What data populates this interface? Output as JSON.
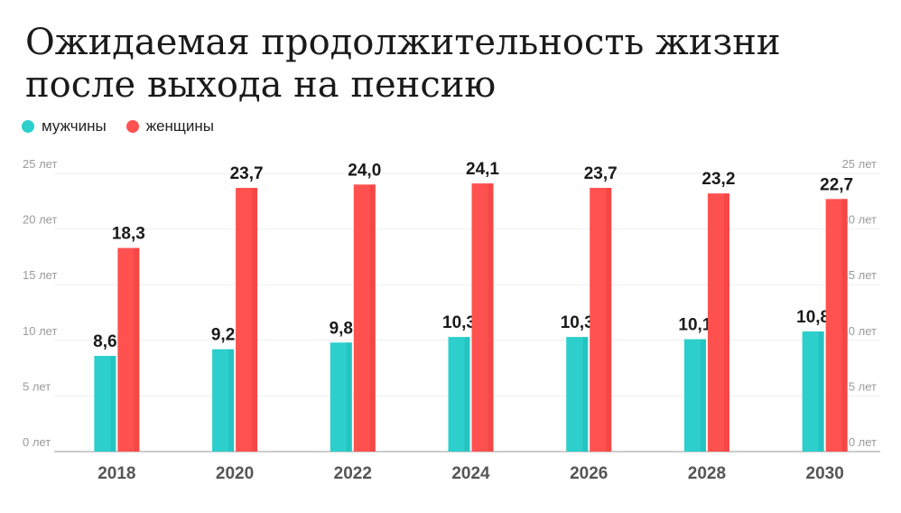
{
  "header": {
    "title_line1": "Ожидаемая продолжительность жизни",
    "title_line2": "после выхода на пенсию"
  },
  "colors": {
    "men": "#2ccfcc",
    "women": "#ff5250",
    "grid": "#eeeeee",
    "axis": "#cccccc"
  },
  "chart_data": {
    "type": "bar",
    "title": "Ожидаемая продолжительность жизни после выхода на пенсию",
    "categories": [
      "2018",
      "2020",
      "2022",
      "2024",
      "2026",
      "2028",
      "2030"
    ],
    "series": [
      {
        "name": "мужчины",
        "values": [
          8.6,
          9.2,
          9.8,
          10.3,
          10.3,
          10.1,
          10.8
        ],
        "labels": [
          "8,6",
          "9,2",
          "9,8",
          "10,3",
          "10,3",
          "10,1",
          "10,8"
        ]
      },
      {
        "name": "женщины",
        "values": [
          18.3,
          23.7,
          24.0,
          24.1,
          23.7,
          23.2,
          22.7
        ],
        "labels": [
          "18,3",
          "23,7",
          "24,0",
          "24,1",
          "23,7",
          "23,2",
          "22,7"
        ]
      }
    ],
    "ylim": [
      0,
      25
    ],
    "yticks": [
      0,
      5,
      10,
      15,
      20,
      25
    ],
    "ytick_labels": [
      "0 лет",
      "5 лет",
      "10 лет",
      "15 лет",
      "20 лет",
      "25 лет"
    ],
    "grid": true,
    "legend": "top-left"
  }
}
